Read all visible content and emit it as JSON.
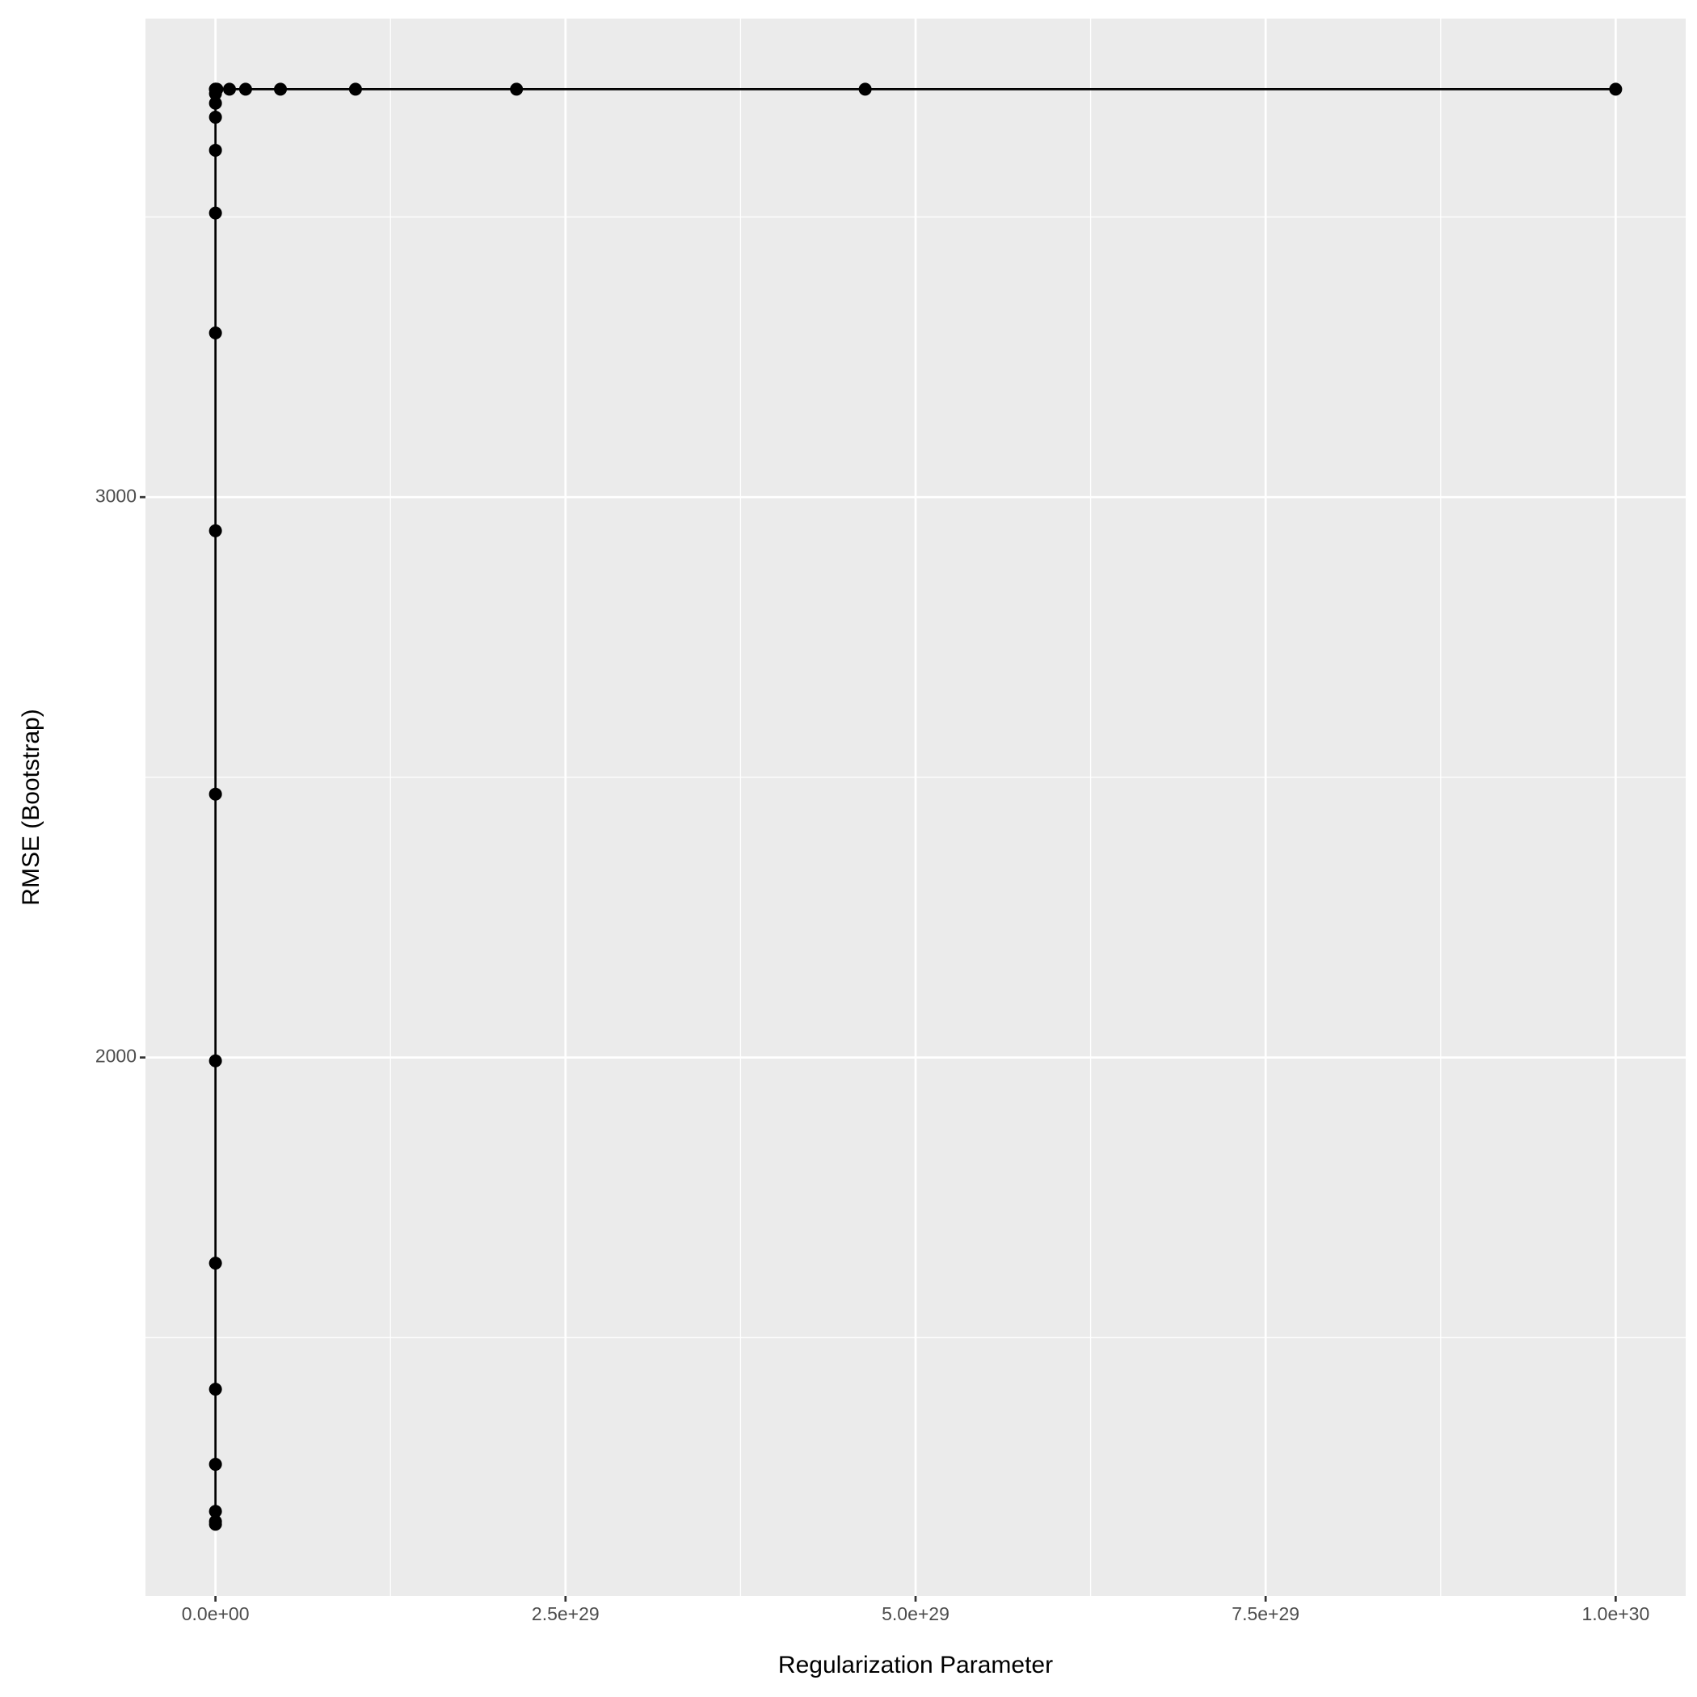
{
  "chart_data": {
    "type": "line",
    "x_label": "Regularization Parameter",
    "y_label": "RMSE (Bootstrap)",
    "x": [
      0.01,
      0.1,
      1,
      10,
      100,
      1000,
      10000,
      100000,
      1000000,
      10000000,
      100000000,
      1000000000,
      10000000000,
      100000000000,
      1000000000000,
      1000000000000000.0,
      1e+20,
      1e+25,
      1e+27,
      1e+28,
      2.15e+28,
      4.64e+28,
      1e+29,
      2.15e+29,
      4.64e+29,
      1e+30
    ],
    "series": [
      {
        "color": "#000000",
        "values": [
          1167,
          1172,
          1190,
          1274,
          1408,
          1633,
          1994,
          2470,
          2940,
          3293,
          3507,
          3619,
          3678,
          3703,
          3720,
          3728,
          3728,
          3728,
          3728,
          3728,
          3728,
          3728,
          3728,
          3728,
          3728,
          3728
        ]
      }
    ],
    "xlim": [
      -5e+28,
      1.05e+30
    ],
    "ylim": [
      1039,
      3854
    ],
    "xticks": [
      {
        "value": 0,
        "label": "0.0e+00"
      },
      {
        "value": 2.5e+29,
        "label": "2.5e+29"
      },
      {
        "value": 5e+29,
        "label": "5.0e+29"
      },
      {
        "value": 7.5e+29,
        "label": "7.5e+29"
      },
      {
        "value": 1e+30,
        "label": "1.0e+30"
      }
    ],
    "yticks": [
      2000,
      3000
    ],
    "x_minor_grid": [
      1.25e+29,
      3.75e+29,
      6.25e+29,
      8.75e+29
    ],
    "y_minor_grid": [
      1500,
      2500,
      3500
    ],
    "grid": true
  }
}
